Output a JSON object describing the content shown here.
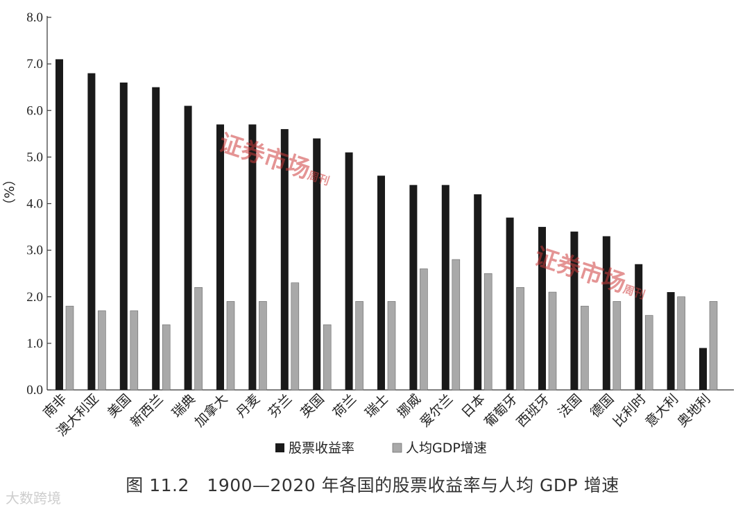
{
  "chart_data": {
    "type": "bar",
    "ylabel": "（%）",
    "ylim": [
      0,
      8
    ],
    "yticks": [
      "0.0",
      "1.0",
      "2.0",
      "3.0",
      "4.0",
      "5.0",
      "6.0",
      "7.0",
      "8.0"
    ],
    "categories": [
      "南非",
      "澳大利亚",
      "美国",
      "新西兰",
      "瑞典",
      "加拿大",
      "丹麦",
      "芬兰",
      "英国",
      "荷兰",
      "瑞士",
      "挪威",
      "爱尔兰",
      "日本",
      "葡萄牙",
      "西班牙",
      "法国",
      "德国",
      "比利时",
      "意大利",
      "奥地利"
    ],
    "series": [
      {
        "name": "股票收益率",
        "color": "#1a1a1a",
        "values": [
          7.1,
          6.8,
          6.6,
          6.5,
          6.1,
          5.7,
          5.7,
          5.6,
          5.4,
          5.1,
          4.6,
          4.4,
          4.4,
          4.2,
          3.7,
          3.5,
          3.4,
          3.3,
          2.7,
          2.1,
          0.9
        ]
      },
      {
        "name": "人均GDP增速",
        "color": "#a9a9a9",
        "values": [
          1.8,
          1.7,
          1.7,
          1.4,
          2.2,
          1.9,
          1.9,
          2.3,
          1.4,
          1.9,
          1.9,
          2.6,
          2.8,
          2.5,
          2.2,
          2.1,
          1.8,
          1.9,
          1.6,
          2.0,
          1.9
        ]
      }
    ],
    "legend_position": "bottom"
  },
  "caption": "图 11.2　1900—2020 年各国的股票收益率与人均 GDP 增速",
  "watermark": {
    "title": "证券市场",
    "sub": "周刊"
  },
  "source_mark": "大数跨境"
}
